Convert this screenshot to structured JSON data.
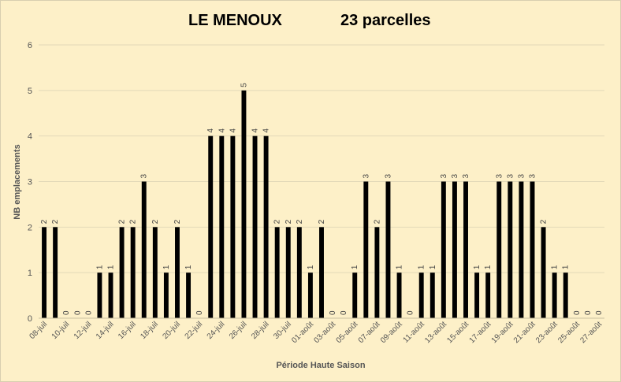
{
  "chart_data": {
    "type": "bar",
    "title": "LE MENOUX",
    "subtitle": "23 parcelles",
    "xlabel": "Période Haute Saison",
    "ylabel": "NB emplacements",
    "ylim": [
      0,
      6
    ],
    "yticks": [
      "0",
      "1",
      "2",
      "3",
      "4",
      "5",
      "6"
    ],
    "grid": true,
    "legend": "none",
    "bar_color": "#000000",
    "categories": [
      "08-juil",
      "09-juil",
      "10-juil",
      "11-juil",
      "12-juil",
      "13-juil",
      "14-juil",
      "15-juil",
      "16-juil",
      "17-juil",
      "18-juil",
      "19-juil",
      "20-juil",
      "21-juil",
      "22-juil",
      "23-juil",
      "24-juil",
      "25-juil",
      "26-juil",
      "27-juil",
      "28-juil",
      "29-juil",
      "30-juil",
      "31-juil",
      "01-août",
      "02-août",
      "03-août",
      "04-août",
      "05-août",
      "06-août",
      "07-août",
      "08-août",
      "09-août",
      "10-août",
      "11-août",
      "12-août",
      "13-août",
      "14-août",
      "15-août",
      "16-août",
      "17-août",
      "18-août",
      "19-août",
      "20-août",
      "21-août",
      "22-août",
      "23-août",
      "24-août",
      "25-août",
      "26-août",
      "27-août"
    ],
    "values": [
      2,
      2,
      0,
      0,
      0,
      1,
      1,
      2,
      2,
      3,
      2,
      1,
      2,
      1,
      0,
      4,
      4,
      4,
      5,
      4,
      4,
      2,
      2,
      2,
      1,
      2,
      0,
      0,
      1,
      3,
      2,
      3,
      1,
      0,
      1,
      1,
      3,
      3,
      3,
      1,
      1,
      3,
      3,
      3,
      3,
      2,
      1,
      1,
      0,
      0,
      0
    ],
    "shown_tick_labels": [
      "08-juil",
      "10-juil",
      "12-juil",
      "14-juil",
      "16-juil",
      "18-juil",
      "20-juil",
      "22-juil",
      "24-juil",
      "26-juil",
      "28-juil",
      "30-juil",
      "01-août",
      "03-août",
      "05-août",
      "07-août",
      "09-août",
      "11-août",
      "13-août",
      "15-août",
      "17-août",
      "19-août",
      "21-août",
      "23-août",
      "25-août",
      "27-août"
    ]
  }
}
